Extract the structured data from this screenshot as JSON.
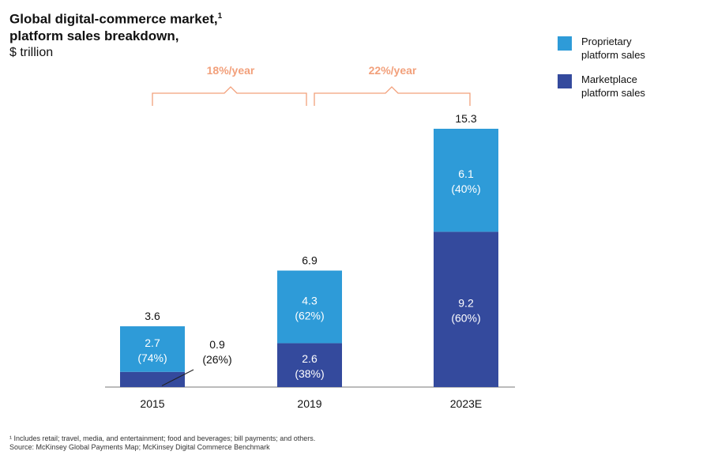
{
  "title_line1": "Global digital-commerce market,",
  "title_sup": "1",
  "title_line2": "platform sales breakdown,",
  "unit": "$ trillion",
  "legend": [
    {
      "label_line1": "Proprietary",
      "label_line2": "platform sales",
      "color": "#2e9bd8"
    },
    {
      "label_line1": "Marketplace",
      "label_line2": "platform sales",
      "color": "#344a9d"
    }
  ],
  "growth": [
    {
      "label": "18%/year",
      "from": "2015",
      "to": "2019"
    },
    {
      "label": "22%/year",
      "from": "2019",
      "to": "2023E"
    }
  ],
  "footnote_line1": "¹ Includes retail; travel, media, and entertainment; food and beverages; bill payments; and others.",
  "footnote_line2": "Source: McKinsey Global Payments Map; McKinsey Digital Commerce Benchmark",
  "chart_data": {
    "type": "bar",
    "stacked": true,
    "categories": [
      "2015",
      "2019",
      "2023E"
    ],
    "series": [
      {
        "name": "Marketplace platform sales",
        "color": "#344a9d",
        "values": [
          0.9,
          2.6,
          9.2
        ],
        "labels": [
          "(26%)",
          "(38%)",
          "(60%)"
        ]
      },
      {
        "name": "Proprietary platform sales",
        "color": "#2e9bd8",
        "values": [
          2.7,
          4.3,
          6.1
        ],
        "labels": [
          "(74%)",
          "(62%)",
          "(40%)"
        ]
      }
    ],
    "totals": [
      "3.6",
      "6.9",
      "15.3"
    ],
    "ylim": [
      0,
      15.3
    ],
    "growth_color": "#f2a07b"
  }
}
